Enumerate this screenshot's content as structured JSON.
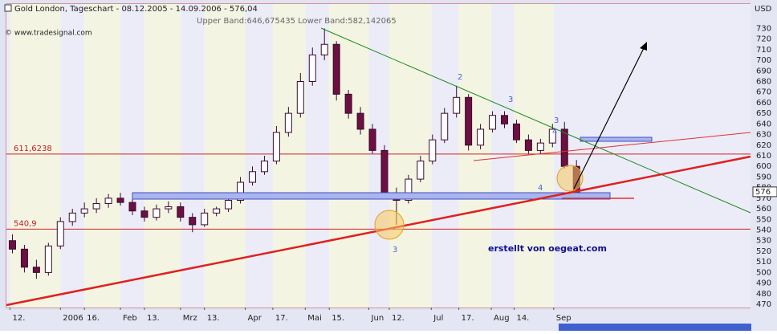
{
  "chart_data": {
    "type": "candlestick",
    "title": "Gold London, Tageschart - 08.12.2005 - 14.09.2006 - 576,04",
    "source": "© www.tradesignal.com",
    "subtitle": "Upper Band:646,675435 Lower Band:582,142065",
    "y_label": "USD",
    "annotation": "erstellt von oegeat.com",
    "wave_labels": [
      "2",
      "3",
      "3",
      "4",
      "4",
      "3"
    ],
    "open": [
      530,
      522,
      505,
      500,
      525,
      548,
      556,
      560,
      565,
      570,
      566,
      558,
      552,
      560,
      562,
      552,
      545,
      556,
      560,
      568,
      585,
      595,
      605,
      632,
      650,
      680,
      705,
      715,
      668,
      650,
      635,
      615,
      575,
      568,
      588,
      605,
      625,
      650,
      665,
      620,
      635,
      648,
      640,
      625,
      615,
      622,
      635,
      600
    ],
    "high": [
      536,
      526,
      512,
      528,
      552,
      560,
      566,
      570,
      574,
      575,
      570,
      562,
      564,
      567,
      566,
      556,
      560,
      562,
      572,
      590,
      600,
      610,
      638,
      656,
      688,
      712,
      730,
      718,
      672,
      656,
      640,
      620,
      580,
      592,
      610,
      630,
      655,
      676,
      668,
      640,
      652,
      652,
      644,
      630,
      626,
      640,
      642,
      606
    ],
    "low": [
      518,
      500,
      494,
      497,
      522,
      544,
      552,
      556,
      561,
      563,
      554,
      548,
      549,
      556,
      548,
      538,
      543,
      553,
      557,
      565,
      582,
      592,
      602,
      628,
      646,
      676,
      700,
      662,
      645,
      630,
      612,
      570,
      545,
      565,
      585,
      602,
      622,
      646,
      615,
      616,
      632,
      636,
      622,
      612,
      612,
      618,
      598,
      572
    ],
    "close": [
      522,
      505,
      500,
      525,
      548,
      556,
      560,
      565,
      570,
      566,
      558,
      552,
      560,
      562,
      552,
      545,
      556,
      560,
      568,
      585,
      595,
      605,
      632,
      650,
      680,
      705,
      715,
      668,
      650,
      635,
      615,
      575,
      568,
      588,
      605,
      625,
      650,
      665,
      620,
      635,
      648,
      640,
      625,
      615,
      622,
      635,
      600,
      576
    ],
    "up_color": "#ffffff",
    "down_color": "#6b1040",
    "xlim": [
      0,
      62
    ],
    "xticks": [
      {
        "value": 0.3,
        "label": "12."
      },
      {
        "value": 4.5,
        "label": "2006"
      },
      {
        "value": 6.5,
        "label": "16."
      },
      {
        "value": 9.5,
        "label": "Feb"
      },
      {
        "value": 11.5,
        "label": "13."
      },
      {
        "value": 14.5,
        "label": "Mrz"
      },
      {
        "value": 16.5,
        "label": "13."
      },
      {
        "value": 19.9,
        "label": "Apr"
      },
      {
        "value": 22.2,
        "label": "17."
      },
      {
        "value": 24.9,
        "label": "Mai"
      },
      {
        "value": 26.9,
        "label": "15."
      },
      {
        "value": 30.2,
        "label": "Jun"
      },
      {
        "value": 31.9,
        "label": "12."
      },
      {
        "value": 35.4,
        "label": "Jul"
      },
      {
        "value": 37.7,
        "label": "17."
      },
      {
        "value": 40.4,
        "label": "Aug"
      },
      {
        "value": 42.3,
        "label": "14."
      },
      {
        "value": 45.6,
        "label": "Sep"
      }
    ],
    "ylim": [
      467,
      753
    ],
    "yticks": [
      470,
      480,
      490,
      500,
      510,
      520,
      530,
      540,
      550,
      560,
      570,
      580,
      590,
      600,
      610,
      620,
      630,
      640,
      650,
      660,
      670,
      680,
      690,
      700,
      710,
      720,
      730
    ],
    "hlines": [
      {
        "value": 611.6238,
        "label": "611,6238"
      },
      {
        "value": 540.9,
        "label": "540,9"
      }
    ],
    "last_price": {
      "value": 576.04,
      "label": "576"
    }
  }
}
